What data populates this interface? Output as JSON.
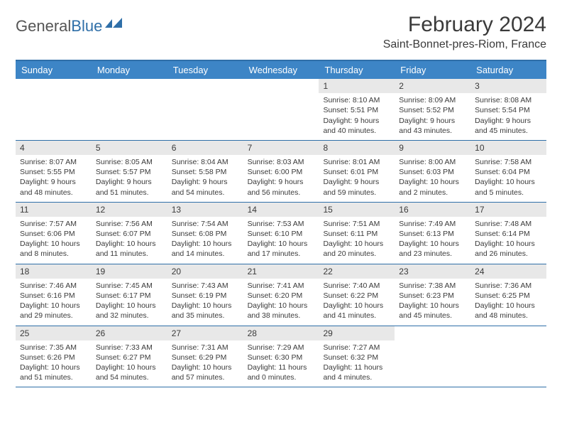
{
  "logo": {
    "word1": "General",
    "word2": "Blue"
  },
  "header": {
    "month_title": "February 2024",
    "location": "Saint-Bonnet-pres-Riom, France"
  },
  "colors": {
    "header_bg": "#3d85c6",
    "header_text": "#ffffff",
    "border": "#2f6fa8",
    "daynum_bg": "#e8e8e8",
    "text": "#3a3a3a",
    "logo_gray": "#555555",
    "logo_blue": "#2f6fa8"
  },
  "day_names": [
    "Sunday",
    "Monday",
    "Tuesday",
    "Wednesday",
    "Thursday",
    "Friday",
    "Saturday"
  ],
  "weeks": [
    [
      null,
      null,
      null,
      null,
      {
        "n": "1",
        "sr": "Sunrise: 8:10 AM",
        "ss": "Sunset: 5:51 PM",
        "dl": "Daylight: 9 hours and 40 minutes."
      },
      {
        "n": "2",
        "sr": "Sunrise: 8:09 AM",
        "ss": "Sunset: 5:52 PM",
        "dl": "Daylight: 9 hours and 43 minutes."
      },
      {
        "n": "3",
        "sr": "Sunrise: 8:08 AM",
        "ss": "Sunset: 5:54 PM",
        "dl": "Daylight: 9 hours and 45 minutes."
      }
    ],
    [
      {
        "n": "4",
        "sr": "Sunrise: 8:07 AM",
        "ss": "Sunset: 5:55 PM",
        "dl": "Daylight: 9 hours and 48 minutes."
      },
      {
        "n": "5",
        "sr": "Sunrise: 8:05 AM",
        "ss": "Sunset: 5:57 PM",
        "dl": "Daylight: 9 hours and 51 minutes."
      },
      {
        "n": "6",
        "sr": "Sunrise: 8:04 AM",
        "ss": "Sunset: 5:58 PM",
        "dl": "Daylight: 9 hours and 54 minutes."
      },
      {
        "n": "7",
        "sr": "Sunrise: 8:03 AM",
        "ss": "Sunset: 6:00 PM",
        "dl": "Daylight: 9 hours and 56 minutes."
      },
      {
        "n": "8",
        "sr": "Sunrise: 8:01 AM",
        "ss": "Sunset: 6:01 PM",
        "dl": "Daylight: 9 hours and 59 minutes."
      },
      {
        "n": "9",
        "sr": "Sunrise: 8:00 AM",
        "ss": "Sunset: 6:03 PM",
        "dl": "Daylight: 10 hours and 2 minutes."
      },
      {
        "n": "10",
        "sr": "Sunrise: 7:58 AM",
        "ss": "Sunset: 6:04 PM",
        "dl": "Daylight: 10 hours and 5 minutes."
      }
    ],
    [
      {
        "n": "11",
        "sr": "Sunrise: 7:57 AM",
        "ss": "Sunset: 6:06 PM",
        "dl": "Daylight: 10 hours and 8 minutes."
      },
      {
        "n": "12",
        "sr": "Sunrise: 7:56 AM",
        "ss": "Sunset: 6:07 PM",
        "dl": "Daylight: 10 hours and 11 minutes."
      },
      {
        "n": "13",
        "sr": "Sunrise: 7:54 AM",
        "ss": "Sunset: 6:08 PM",
        "dl": "Daylight: 10 hours and 14 minutes."
      },
      {
        "n": "14",
        "sr": "Sunrise: 7:53 AM",
        "ss": "Sunset: 6:10 PM",
        "dl": "Daylight: 10 hours and 17 minutes."
      },
      {
        "n": "15",
        "sr": "Sunrise: 7:51 AM",
        "ss": "Sunset: 6:11 PM",
        "dl": "Daylight: 10 hours and 20 minutes."
      },
      {
        "n": "16",
        "sr": "Sunrise: 7:49 AM",
        "ss": "Sunset: 6:13 PM",
        "dl": "Daylight: 10 hours and 23 minutes."
      },
      {
        "n": "17",
        "sr": "Sunrise: 7:48 AM",
        "ss": "Sunset: 6:14 PM",
        "dl": "Daylight: 10 hours and 26 minutes."
      }
    ],
    [
      {
        "n": "18",
        "sr": "Sunrise: 7:46 AM",
        "ss": "Sunset: 6:16 PM",
        "dl": "Daylight: 10 hours and 29 minutes."
      },
      {
        "n": "19",
        "sr": "Sunrise: 7:45 AM",
        "ss": "Sunset: 6:17 PM",
        "dl": "Daylight: 10 hours and 32 minutes."
      },
      {
        "n": "20",
        "sr": "Sunrise: 7:43 AM",
        "ss": "Sunset: 6:19 PM",
        "dl": "Daylight: 10 hours and 35 minutes."
      },
      {
        "n": "21",
        "sr": "Sunrise: 7:41 AM",
        "ss": "Sunset: 6:20 PM",
        "dl": "Daylight: 10 hours and 38 minutes."
      },
      {
        "n": "22",
        "sr": "Sunrise: 7:40 AM",
        "ss": "Sunset: 6:22 PM",
        "dl": "Daylight: 10 hours and 41 minutes."
      },
      {
        "n": "23",
        "sr": "Sunrise: 7:38 AM",
        "ss": "Sunset: 6:23 PM",
        "dl": "Daylight: 10 hours and 45 minutes."
      },
      {
        "n": "24",
        "sr": "Sunrise: 7:36 AM",
        "ss": "Sunset: 6:25 PM",
        "dl": "Daylight: 10 hours and 48 minutes."
      }
    ],
    [
      {
        "n": "25",
        "sr": "Sunrise: 7:35 AM",
        "ss": "Sunset: 6:26 PM",
        "dl": "Daylight: 10 hours and 51 minutes."
      },
      {
        "n": "26",
        "sr": "Sunrise: 7:33 AM",
        "ss": "Sunset: 6:27 PM",
        "dl": "Daylight: 10 hours and 54 minutes."
      },
      {
        "n": "27",
        "sr": "Sunrise: 7:31 AM",
        "ss": "Sunset: 6:29 PM",
        "dl": "Daylight: 10 hours and 57 minutes."
      },
      {
        "n": "28",
        "sr": "Sunrise: 7:29 AM",
        "ss": "Sunset: 6:30 PM",
        "dl": "Daylight: 11 hours and 0 minutes."
      },
      {
        "n": "29",
        "sr": "Sunrise: 7:27 AM",
        "ss": "Sunset: 6:32 PM",
        "dl": "Daylight: 11 hours and 4 minutes."
      },
      null,
      null
    ]
  ]
}
